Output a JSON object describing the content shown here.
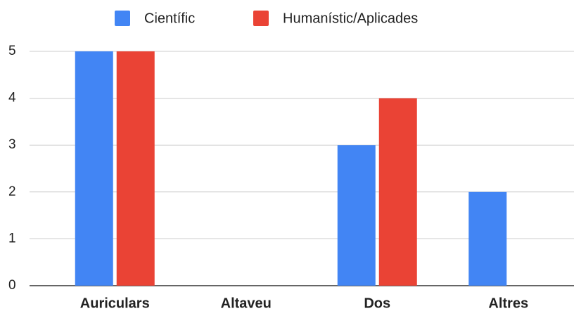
{
  "chart_data": {
    "type": "bar",
    "categories": [
      "Auriculars",
      "Altaveu",
      "Dos",
      "Altres"
    ],
    "series": [
      {
        "name": "Científic",
        "color": "#4285f4",
        "values": [
          5,
          0,
          3,
          2
        ]
      },
      {
        "name": "Humanístic/Aplicades",
        "color": "#ea4335",
        "values": [
          5,
          0,
          4,
          0
        ]
      }
    ],
    "ylim": [
      0,
      5
    ],
    "yticks": [
      0,
      1,
      2,
      3,
      4,
      5
    ],
    "grid": true,
    "legend": "top"
  }
}
